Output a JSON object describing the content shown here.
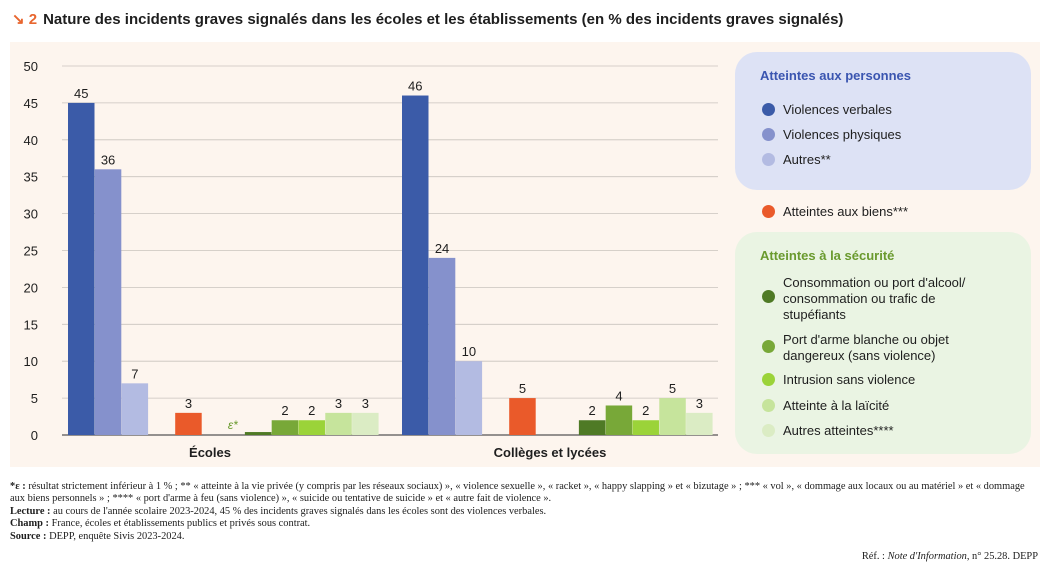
{
  "header": {
    "arrow": "↘ 2",
    "title": "Nature des incidents graves signalés dans les écoles et les établissements (en % des incidents graves signalés)"
  },
  "chart_data": {
    "type": "bar",
    "ylim": [
      0,
      50
    ],
    "yticks": [
      0,
      5,
      10,
      15,
      20,
      25,
      30,
      35,
      40,
      45,
      50
    ],
    "grid": true,
    "groups": [
      {
        "name": "Écoles",
        "bars": [
          {
            "series": "Violences verbales",
            "value": 45,
            "label": "45"
          },
          {
            "series": "Violences physiques",
            "value": 36,
            "label": "36"
          },
          {
            "series": "Autres**",
            "value": 7,
            "label": "7"
          },
          {
            "series": "Atteintes aux biens***",
            "value": 3,
            "label": "3"
          },
          {
            "series": "Consommation ou port d'alcool/ consommation ou trafic de stupéfiants",
            "value": 0.4,
            "label": "ε*"
          },
          {
            "series": "Port d'arme blanche ou objet dangereux (sans violence)",
            "value": 2,
            "label": "2"
          },
          {
            "series": "Intrusion sans violence",
            "value": 2,
            "label": "2"
          },
          {
            "series": "Atteinte à la laïcité",
            "value": 3,
            "label": "3"
          },
          {
            "series": "Autres atteintes****",
            "value": 3,
            "label": "3"
          }
        ]
      },
      {
        "name": "Collèges et lycées",
        "bars": [
          {
            "series": "Violences verbales",
            "value": 46,
            "label": "46"
          },
          {
            "series": "Violences physiques",
            "value": 24,
            "label": "24"
          },
          {
            "series": "Autres**",
            "value": 10,
            "label": "10"
          },
          {
            "series": "Atteintes aux biens***",
            "value": 5,
            "label": "5"
          },
          {
            "series": "Consommation ou port d'alcool/ consommation ou trafic de stupéfiants",
            "value": 2,
            "label": "2"
          },
          {
            "series": "Port d'arme blanche ou objet dangereux (sans violence)",
            "value": 4,
            "label": "4"
          },
          {
            "series": "Intrusion sans violence",
            "value": 2,
            "label": "2"
          },
          {
            "series": "Atteinte à la laïcité",
            "value": 5,
            "label": "5"
          },
          {
            "series": "Autres atteintes****",
            "value": 3,
            "label": "3"
          }
        ]
      }
    ],
    "series_colors": {
      "Violences verbales": "#3b5ba8",
      "Violences physiques": "#8591cc",
      "Autres**": "#b3bbe2",
      "Atteintes aux biens***": "#ea5a2a",
      "Consommation ou port d'alcool/ consommation ou trafic de stupéfiants": "#4f7a25",
      "Port d'arme blanche ou objet dangereux (sans violence)": "#78a838",
      "Intrusion sans violence": "#9bd339",
      "Atteinte à la laïcité": "#c6e49c",
      "Autres atteintes****": "#dbecc4"
    }
  },
  "legend": {
    "persons_title": "Atteintes aux personnes",
    "security_title": "Atteintes à la sécurité",
    "items": [
      {
        "label": "Violences verbales",
        "color": "#3b5ba8"
      },
      {
        "label": "Violences physiques",
        "color": "#8591cc"
      },
      {
        "label": "Autres**",
        "color": "#b3bbe2"
      },
      {
        "label": "Atteintes aux biens***",
        "color": "#ea5a2a"
      },
      {
        "label": "Consommation ou port d'alcool/ consommation ou trafic de stupéfiants",
        "color": "#4f7a25"
      },
      {
        "label": "Port d'arme blanche ou objet dangereux (sans violence)",
        "color": "#78a838"
      },
      {
        "label": "Intrusion sans violence",
        "color": "#9bd339"
      },
      {
        "label": "Atteinte à la laïcité",
        "color": "#c6e49c"
      },
      {
        "label": "Autres atteintes****",
        "color": "#dbecc4"
      }
    ]
  },
  "notes": {
    "footnote_key": "*ε :",
    "footnote_text": "résultat strictement inférieur à 1 % ; ** « atteinte à la vie privée (y compris par les réseaux sociaux) », « violence sexuelle », « racket », « happy slapping » et « bizutage » ; *** « vol », « dommage aux locaux ou au matériel » et « dommage aux biens personnels » ; **** « port d'arme à feu (sans violence) », « suicide ou tentative de suicide » et « autre fait de violence ».",
    "lecture_key": "Lecture :",
    "lecture_text": "au cours de l'année scolaire 2023-2024, 45 % des incidents graves signalés dans les écoles sont des violences verbales.",
    "champ_key": "Champ :",
    "champ_text": "France, écoles et établissements publics et privés sous contrat.",
    "source_key": "Source :",
    "source_text": "DEPP, enquête Sivis 2023-2024.",
    "ref_prefix": "Réf. :",
    "ref_pub": "Note d'Information",
    "ref_suffix": ", n° 25.28. DEPP"
  }
}
